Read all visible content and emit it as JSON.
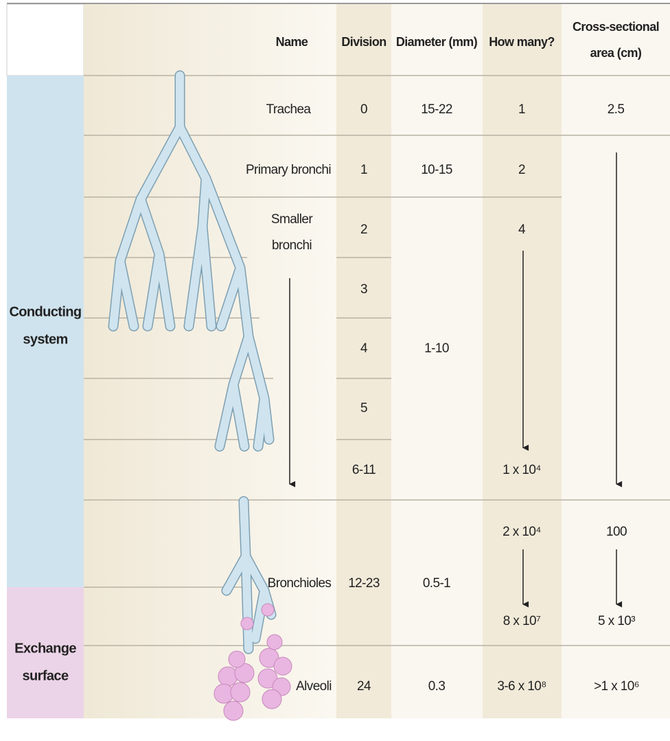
{
  "header": {
    "name": "Name",
    "division": "Division",
    "diameter": "Diameter (mm)",
    "count": "How many?",
    "area": [
      "Cross-sectional",
      "area (cm)"
    ]
  },
  "groups": {
    "conducting": [
      "Conducting",
      "system"
    ],
    "exchange": [
      "Exchange",
      "surface"
    ]
  },
  "rows": {
    "trachea": {
      "name": "Trachea",
      "division": "0",
      "diameter": "15-22",
      "count": "1",
      "area": "2.5"
    },
    "primary_bronchi": {
      "name": "Primary bronchi",
      "division": "1",
      "diameter": "10-15",
      "count": "2"
    },
    "smaller_bronchi": {
      "name": [
        "Smaller",
        "bronchi"
      ],
      "divisions": [
        "2",
        "3",
        "4",
        "5",
        "6-11"
      ],
      "diameter": "1-10",
      "count_from": "4",
      "count_to": "1 x 10⁴"
    },
    "bronchioles": {
      "name": "Bronchioles",
      "division": "12-23",
      "diameter": "0.5-1",
      "count_from": "2 x 10⁴",
      "count_to": "8 x 10⁷",
      "area_from": "100",
      "area_to": "5 x 10³"
    },
    "alveoli": {
      "name": "Alveoli",
      "division": "24",
      "diameter": "0.3",
      "count": "3-6 x 10⁸",
      "area": ">1 x 10⁶"
    }
  }
}
